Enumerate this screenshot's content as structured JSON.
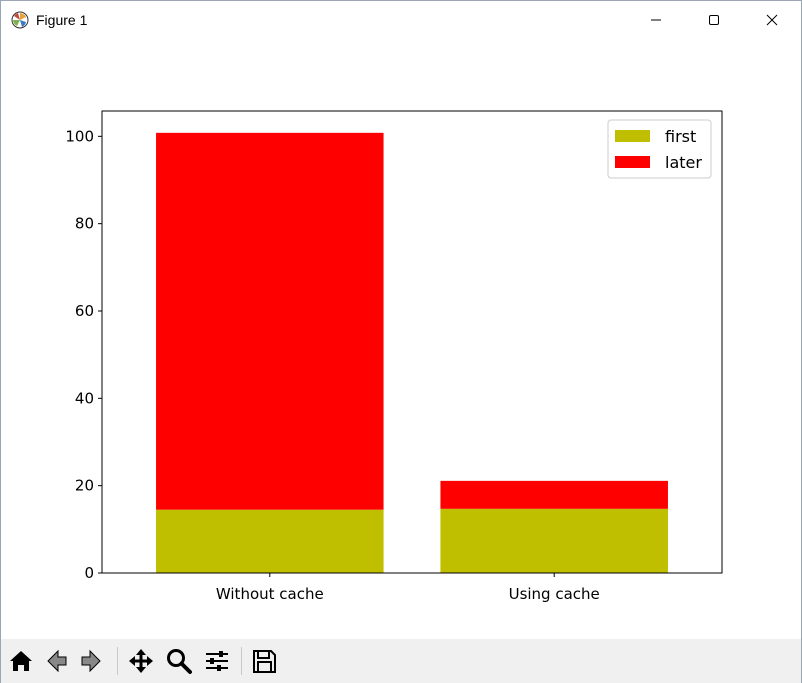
{
  "window": {
    "title": "Figure 1",
    "controls": {
      "minimize": "minimize-icon",
      "maximize": "maximize-icon",
      "close": "close-icon"
    }
  },
  "toolbar": {
    "buttons": [
      "home-icon",
      "back-icon",
      "forward-icon",
      "pan-icon",
      "zoom-icon",
      "configure-subplots-icon",
      "save-icon"
    ]
  },
  "chart_data": {
    "type": "bar",
    "stacked": true,
    "categories": [
      "Without cache",
      "Using cache"
    ],
    "series": [
      {
        "name": "first",
        "color": "#bfbf00",
        "values": [
          14.5,
          14.7
        ]
      },
      {
        "name": "later",
        "color": "#ff0000",
        "values": [
          86.3,
          6.4
        ]
      }
    ],
    "ylim": [
      0,
      105.8
    ],
    "yticks": [
      0,
      20,
      40,
      60,
      80,
      100
    ],
    "xlabel": "",
    "ylabel": "",
    "title": "",
    "legend": {
      "placement": "upper right",
      "entries": [
        "first",
        "later"
      ]
    },
    "grid": false
  }
}
